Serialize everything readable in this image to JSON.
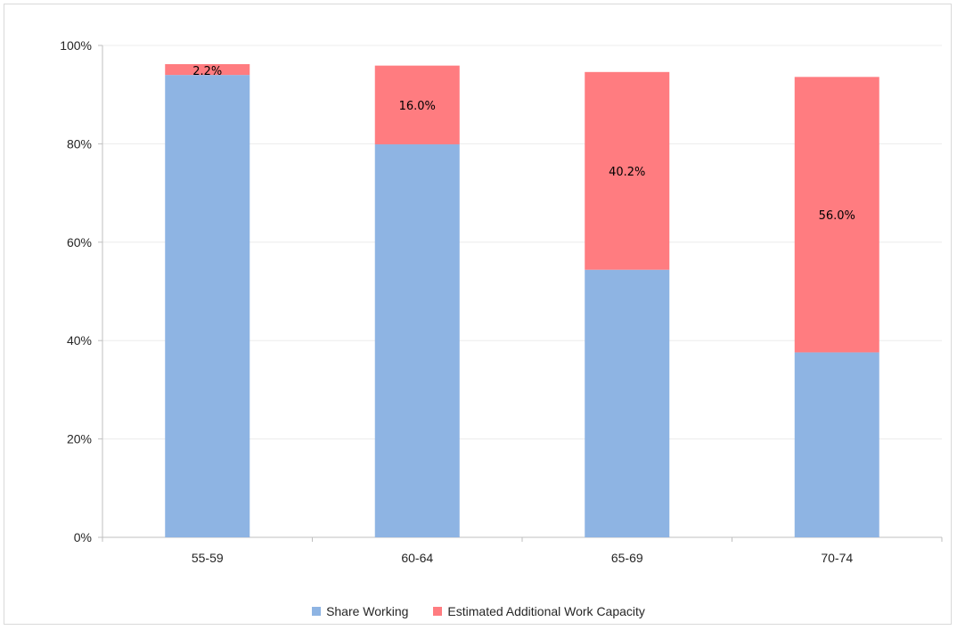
{
  "chart_data": {
    "type": "bar",
    "stacked": true,
    "categories": [
      "55-59",
      "60-64",
      "65-69",
      "70-74"
    ],
    "series": [
      {
        "name": "Share Working",
        "color": "#8eb4e3",
        "values": [
          94.0,
          79.9,
          54.4,
          37.6
        ]
      },
      {
        "name": "Estimated Additional Work Capacity",
        "color": "#ff7c80",
        "values": [
          2.2,
          16.0,
          40.2,
          56.0
        ]
      }
    ],
    "data_labels": [
      "2.2%",
      "16.0%",
      "40.2%",
      "56.0%"
    ],
    "y_ticks": [
      "0%",
      "20%",
      "40%",
      "60%",
      "80%",
      "100%"
    ],
    "ylim": [
      0,
      100
    ],
    "grid": true,
    "legend_position": "bottom"
  }
}
